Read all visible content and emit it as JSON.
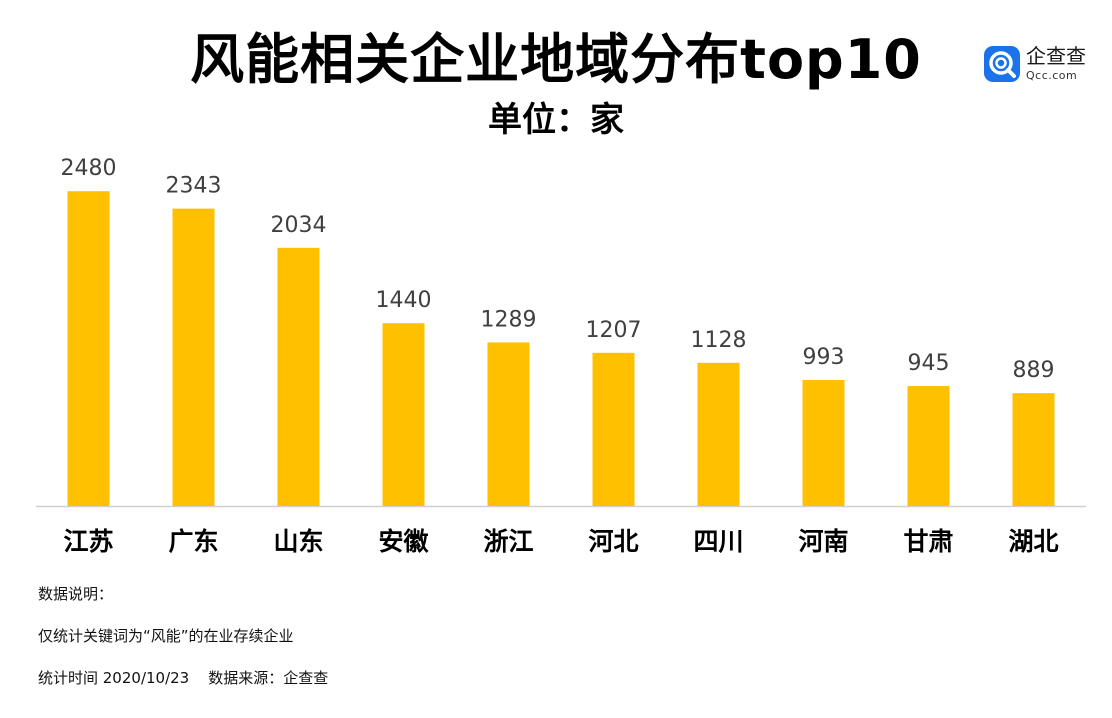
{
  "header": {
    "title": "风能相关企业地域分布top10",
    "subtitle": "单位：家"
  },
  "logo": {
    "name": "企查查",
    "url": "Qcc.com",
    "icon": "qcc-logo-icon",
    "color": "#1a73e8"
  },
  "chart_data": {
    "type": "bar",
    "categories": [
      "江苏",
      "广东",
      "山东",
      "安徽",
      "浙江",
      "河北",
      "四川",
      "河南",
      "甘肃",
      "湖北"
    ],
    "values": [
      2480,
      2343,
      2034,
      1440,
      1289,
      1207,
      1128,
      993,
      945,
      889
    ],
    "ylim": [
      0,
      2600
    ],
    "grid": false,
    "data_labels": true,
    "bar_color": "#FFC000",
    "label_color": "#404040"
  },
  "notes": {
    "heading": "数据说明：",
    "line1": "仅统计关键词为“风能”的在业存续企业",
    "line2": "统计时间 2020/10/23    数据来源：企查查"
  }
}
